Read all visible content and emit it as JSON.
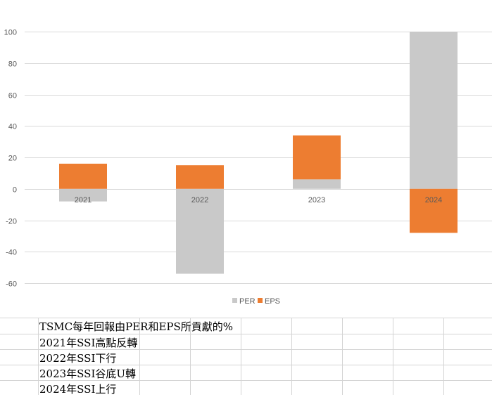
{
  "chart_data": {
    "type": "bar",
    "stacked": true,
    "categories": [
      "2021",
      "2022",
      "2023",
      "2024"
    ],
    "series": [
      {
        "name": "PER",
        "color": "#c9c9c9",
        "values": [
          -8,
          -54,
          6,
          100
        ]
      },
      {
        "name": "EPS",
        "color": "#ed7d31",
        "values": [
          16,
          15,
          28,
          -28
        ]
      }
    ],
    "ylim": [
      -60,
      100
    ],
    "yticks": [
      100,
      80,
      60,
      40,
      20,
      0,
      -20,
      -40,
      -60
    ],
    "grid": true,
    "legend": "bottom"
  },
  "sheet": {
    "rows": [
      "TSMC每年回報由PER和EPS所貢獻的%",
      "2021年SSI高點反轉",
      "2022年SSI下行",
      "2023年SSI谷底U轉",
      "2024年SSI上行"
    ]
  }
}
